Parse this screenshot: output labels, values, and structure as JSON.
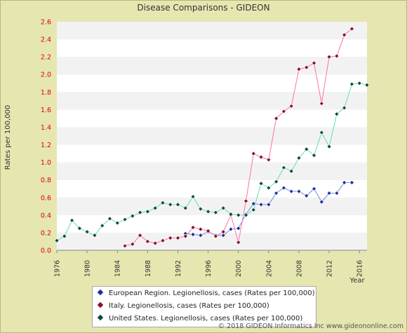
{
  "title": "Disease Comparisons - GIDEON",
  "copyright": "© 2018 GIDEON Informatics Inc www.gideononline.com",
  "chart_data": {
    "type": "line",
    "title": "Disease Comparisons - GIDEON",
    "xlabel": "Year",
    "ylabel": "Rates per 100,000",
    "xlim": [
      1976,
      2017
    ],
    "ylim": [
      0,
      2.6
    ],
    "x_ticks": [
      "1976",
      "1980",
      "1984",
      "1988",
      "1992",
      "1996",
      "2000",
      "2004",
      "2008",
      "2012",
      "2016"
    ],
    "y_ticks": [
      "0.0",
      "0.2",
      "0.4",
      "0.6",
      "0.8",
      "1.0",
      "1.2",
      "1.4",
      "1.6",
      "1.8",
      "2.0",
      "2.2",
      "2.4",
      "2.6"
    ],
    "grid": "horizontal bands",
    "legend_position": "bottom",
    "series": [
      {
        "name": "European Region. Legionellosis, cases (Rates per 100,000)",
        "color": "#6a8fd8",
        "marker_color": "#1a2ea8",
        "points": [
          [
            1993,
            0.19
          ],
          [
            1994,
            0.18
          ],
          [
            1995,
            0.17
          ],
          [
            1996,
            0.21
          ],
          [
            1997,
            0.17
          ],
          [
            1998,
            0.17
          ],
          [
            1999,
            0.24
          ],
          [
            2000,
            0.25
          ],
          [
            2001,
            0.41
          ],
          [
            2002,
            0.53
          ],
          [
            2003,
            0.52
          ],
          [
            2004,
            0.52
          ],
          [
            2005,
            0.65
          ],
          [
            2006,
            0.71
          ],
          [
            2007,
            0.67
          ],
          [
            2008,
            0.67
          ],
          [
            2009,
            0.62
          ],
          [
            2010,
            0.7
          ],
          [
            2011,
            0.55
          ],
          [
            2012,
            0.65
          ],
          [
            2013,
            0.65
          ],
          [
            2014,
            0.77
          ],
          [
            2015,
            0.77
          ]
        ]
      },
      {
        "name": "Italy. Legionellosis, cases (Rates per 100,000)",
        "color": "#ff6fb0",
        "marker_color": "#8a1028",
        "points": [
          [
            1985,
            0.05
          ],
          [
            1986,
            0.07
          ],
          [
            1987,
            0.17
          ],
          [
            1988,
            0.1
          ],
          [
            1989,
            0.08
          ],
          [
            1990,
            0.11
          ],
          [
            1991,
            0.14
          ],
          [
            1992,
            0.14
          ],
          [
            1993,
            0.16
          ],
          [
            1994,
            0.26
          ],
          [
            1995,
            0.24
          ],
          [
            1996,
            0.22
          ],
          [
            1997,
            0.16
          ],
          [
            1998,
            0.21
          ],
          [
            1999,
            0.4
          ],
          [
            2000,
            0.09
          ],
          [
            2001,
            0.56
          ],
          [
            2002,
            1.1
          ],
          [
            2003,
            1.06
          ],
          [
            2004,
            1.03
          ],
          [
            2005,
            1.5
          ],
          [
            2006,
            1.58
          ],
          [
            2007,
            1.64
          ],
          [
            2008,
            2.06
          ],
          [
            2009,
            2.08
          ],
          [
            2010,
            2.13
          ],
          [
            2011,
            1.67
          ],
          [
            2012,
            2.2
          ],
          [
            2013,
            2.21
          ],
          [
            2014,
            2.45
          ],
          [
            2015,
            2.52
          ]
        ]
      },
      {
        "name": "United States. Legionellosis, cases (Rates per 100,000)",
        "color": "#5fe0b0",
        "marker_color": "#0e4a3a",
        "points": [
          [
            1976,
            0.11
          ],
          [
            1977,
            0.16
          ],
          [
            1978,
            0.34
          ],
          [
            1979,
            0.25
          ],
          [
            1980,
            0.21
          ],
          [
            1981,
            0.17
          ],
          [
            1982,
            0.28
          ],
          [
            1983,
            0.36
          ],
          [
            1984,
            0.31
          ],
          [
            1985,
            0.35
          ],
          [
            1986,
            0.39
          ],
          [
            1987,
            0.43
          ],
          [
            1988,
            0.44
          ],
          [
            1989,
            0.48
          ],
          [
            1990,
            0.54
          ],
          [
            1991,
            0.52
          ],
          [
            1992,
            0.52
          ],
          [
            1993,
            0.48
          ],
          [
            1994,
            0.61
          ],
          [
            1995,
            0.47
          ],
          [
            1996,
            0.44
          ],
          [
            1997,
            0.43
          ],
          [
            1998,
            0.48
          ],
          [
            1999,
            0.41
          ],
          [
            2000,
            0.4
          ],
          [
            2001,
            0.4
          ],
          [
            2002,
            0.46
          ],
          [
            2003,
            0.76
          ],
          [
            2004,
            0.71
          ],
          [
            2005,
            0.78
          ],
          [
            2006,
            0.94
          ],
          [
            2007,
            0.9
          ],
          [
            2008,
            1.05
          ],
          [
            2009,
            1.15
          ],
          [
            2010,
            1.08
          ],
          [
            2011,
            1.34
          ],
          [
            2012,
            1.18
          ],
          [
            2013,
            1.55
          ],
          [
            2014,
            1.62
          ],
          [
            2015,
            1.89
          ],
          [
            2016,
            1.9
          ],
          [
            2017,
            1.88
          ]
        ]
      }
    ]
  }
}
